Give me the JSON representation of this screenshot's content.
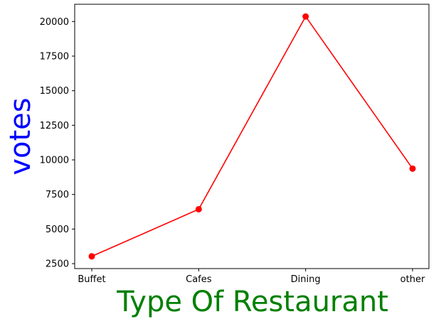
{
  "chart_data": {
    "type": "line",
    "title": "",
    "xlabel": "Type Of Restaurant",
    "ylabel": "votes",
    "categories": [
      "Buffet",
      "Cafes",
      "Dining",
      "other"
    ],
    "series": [
      {
        "values": [
          3028,
          6434,
          20363,
          9367
        ],
        "color": "#ff0000",
        "marker": "circle"
      }
    ],
    "yticks": [
      2500,
      5000,
      7500,
      10000,
      12500,
      15000,
      17500,
      20000
    ],
    "ylim": [
      2144,
      21247
    ],
    "grid": false,
    "legend": "none",
    "colors": {
      "xlabel": "#008000",
      "ylabel": "#0000ff"
    }
  }
}
